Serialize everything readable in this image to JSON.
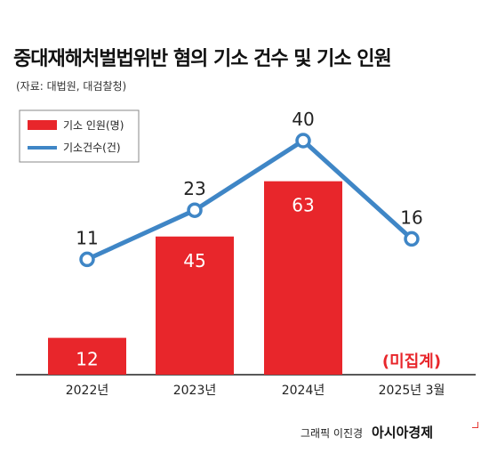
{
  "header": {
    "title": "중대재해처벌법위반 혐의 기소 건수 및 기소 인원",
    "source": "(자료: 대법원, 대검찰청)"
  },
  "chart_data": {
    "type": "bar+line",
    "categories": [
      "2022년",
      "2023년",
      "2024년",
      "2025년 3월"
    ],
    "series": [
      {
        "name": "기소 인원(명)",
        "kind": "bar",
        "color": "#e8262b",
        "values": [
          12,
          45,
          63,
          null
        ]
      },
      {
        "name": "기소건수(건)",
        "kind": "line",
        "color": "#3f86c6",
        "values": [
          11,
          23,
          40,
          16
        ]
      }
    ],
    "annotations": [
      {
        "category": "2025년 3월",
        "text": "(미집계)",
        "color": "#e8262b"
      }
    ],
    "legend_position": "top-left",
    "grid": false
  },
  "footer": {
    "credit": "그래픽 이진경",
    "brand": "아시아경제"
  }
}
